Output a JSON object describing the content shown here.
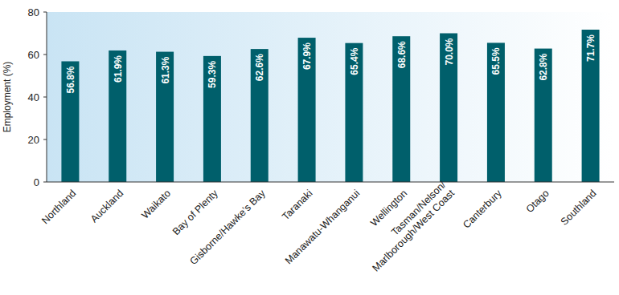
{
  "chart_data": {
    "type": "bar",
    "y_label": "Employment (%)",
    "categories": [
      "Northland",
      "Auckland",
      "Waikato",
      "Bay of Plenty",
      "Gisborne/Hawke’s Bay",
      "Taranaki",
      "Manawatu-Whanganui",
      "Wellington",
      "Tasman/Nelson/\nMarlborough/West Coast",
      "Canterbury",
      "Otago",
      "Southland"
    ],
    "values": [
      56.8,
      61.9,
      61.3,
      59.3,
      62.6,
      67.9,
      65.4,
      68.6,
      70.0,
      65.5,
      62.8,
      71.7
    ],
    "value_labels": [
      "56.8%",
      "61.9%",
      "61.3%",
      "59.3%",
      "62.6%",
      "67.9%",
      "65.4%",
      "68.6%",
      "70.0%",
      "65.5%",
      "62.8%",
      "71.7%"
    ],
    "color": "#005f6b",
    "ylim": [
      0,
      80
    ],
    "yticks": [
      0,
      20,
      40,
      60,
      80
    ],
    "grid": false,
    "data_labels": true
  }
}
